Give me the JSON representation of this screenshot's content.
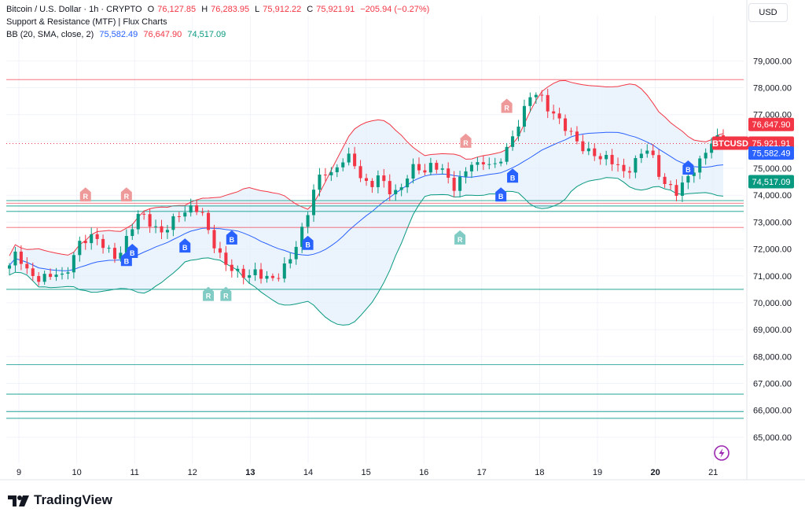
{
  "header": {
    "symbol": "Bitcoin / U.S. Dollar · 1h · CRYPTO",
    "ohlc": {
      "o_label": "O",
      "o": "76,127.85",
      "h_label": "H",
      "h": "76,283.95",
      "l_label": "L",
      "l": "75,912.22",
      "c_label": "C",
      "c": "75,921.91",
      "change": "−205.94 (−0.27%)"
    },
    "indicator1": "Support & Resistance (MTF) | Flux Charts",
    "indicator2": {
      "name": "BB (20, SMA, close, 2)",
      "basis": "75,582.49",
      "upper": "76,647.90",
      "lower": "74,517.09"
    }
  },
  "currency_button": "USD",
  "brand": "TradingView",
  "colors": {
    "up": "#089981",
    "down": "#f23645",
    "basis": "#2962ff",
    "bb_upper": "#f23645",
    "bb_lower": "#089981",
    "resistance": "#f23645",
    "support": "#26a69a",
    "band_fill": "#e3eefb",
    "grid": "#f0f3fa"
  },
  "chart_data": {
    "type": "candlestick",
    "title": "Bitcoin / U.S. Dollar · 1h · CRYPTO",
    "ylim": [
      64000,
      79800
    ],
    "y_ticks": [
      "79,000.00",
      "78,000.00",
      "77,000.00",
      "76,000.00",
      "75,000.00",
      "74,000.00",
      "73,000.00",
      "72,000.00",
      "71,000.00",
      "70,000.00",
      "69,000.00",
      "68,000.00",
      "67,000.00",
      "66,000.00",
      "65,000.00"
    ],
    "y_tick_values": [
      79000,
      78000,
      77000,
      76000,
      75000,
      74000,
      73000,
      72000,
      71000,
      70000,
      69000,
      68000,
      67000,
      66000,
      65000
    ],
    "x_ticks": [
      "9",
      "10",
      "11",
      "12",
      "13",
      "14",
      "15",
      "16",
      "17",
      "18",
      "19",
      "20",
      "21"
    ],
    "closes": [
      71300,
      71900,
      71400,
      71000,
      70800,
      70900,
      71200,
      71000,
      71400,
      72100,
      72400,
      72600,
      72200,
      71800,
      71600,
      72300,
      72900,
      73300,
      73000,
      72800,
      72700,
      72900,
      73200,
      73400,
      73700,
      73400,
      72500,
      71900,
      71600,
      71300,
      71000,
      70900,
      71200,
      71100,
      70800,
      70900,
      71400,
      72000,
      72600,
      73400,
      74500,
      75000,
      74800,
      75100,
      75400,
      75200,
      74600,
      74300,
      74600,
      74400,
      74100,
      74300,
      74700,
      75100,
      74900,
      75200,
      75000,
      74600,
      74300,
      74800,
      75200,
      75000,
      75300,
      75100,
      75400,
      75700,
      76400,
      77200,
      77900,
      77700,
      77200,
      77000,
      76800,
      76300,
      75900,
      75600,
      75700,
      75400,
      75300,
      75100,
      74900,
      75100,
      75400,
      75700,
      75300,
      74600,
      74300,
      74000,
      74500,
      75000,
      75300,
      75700,
      76100,
      75920
    ],
    "last_price": 75921.91,
    "price_labels": [
      {
        "text": "76,647.90",
        "value": 76647.9,
        "color": "#f23645"
      },
      {
        "text": "BTCUSD",
        "value": 75921.91,
        "color": "#f23645"
      },
      {
        "text": "75,921.91",
        "value": 75921.91,
        "color": "#f23645"
      },
      {
        "text": "75,582.49",
        "value": 75582.49,
        "color": "#2962ff"
      },
      {
        "text": "74,517.09",
        "value": 74517.09,
        "color": "#089981"
      }
    ],
    "resistance_levels": [
      78300,
      73700,
      72800
    ],
    "support_levels": [
      73800,
      73600,
      73400,
      70500,
      67700,
      66600,
      65950,
      65700
    ],
    "signals": [
      {
        "label": "R",
        "x": 13,
        "value": 74000,
        "kind": "resistance"
      },
      {
        "label": "R",
        "x": 20,
        "value": 74000,
        "kind": "resistance"
      },
      {
        "label": "B",
        "x": 20,
        "value": 71600,
        "kind": "buy"
      },
      {
        "label": "B",
        "x": 21,
        "value": 71900,
        "kind": "buy"
      },
      {
        "label": "B",
        "x": 30,
        "value": 72100,
        "kind": "buy"
      },
      {
        "label": "R",
        "x": 34,
        "value": 70300,
        "kind": "support"
      },
      {
        "label": "R",
        "x": 37,
        "value": 70300,
        "kind": "support"
      },
      {
        "label": "B",
        "x": 38,
        "value": 72400,
        "kind": "buy"
      },
      {
        "label": "B",
        "x": 51,
        "value": 72200,
        "kind": "buy"
      },
      {
        "label": "R",
        "x": 78,
        "value": 76000,
        "kind": "resistance"
      },
      {
        "label": "R",
        "x": 77,
        "value": 72400,
        "kind": "support"
      },
      {
        "label": "B",
        "x": 84,
        "value": 74000,
        "kind": "buy"
      },
      {
        "label": "B",
        "x": 86,
        "value": 74700,
        "kind": "buy"
      },
      {
        "label": "R",
        "x": 85,
        "value": 77300,
        "kind": "resistance"
      },
      {
        "label": "B",
        "x": 116,
        "value": 75000,
        "kind": "buy"
      }
    ]
  }
}
